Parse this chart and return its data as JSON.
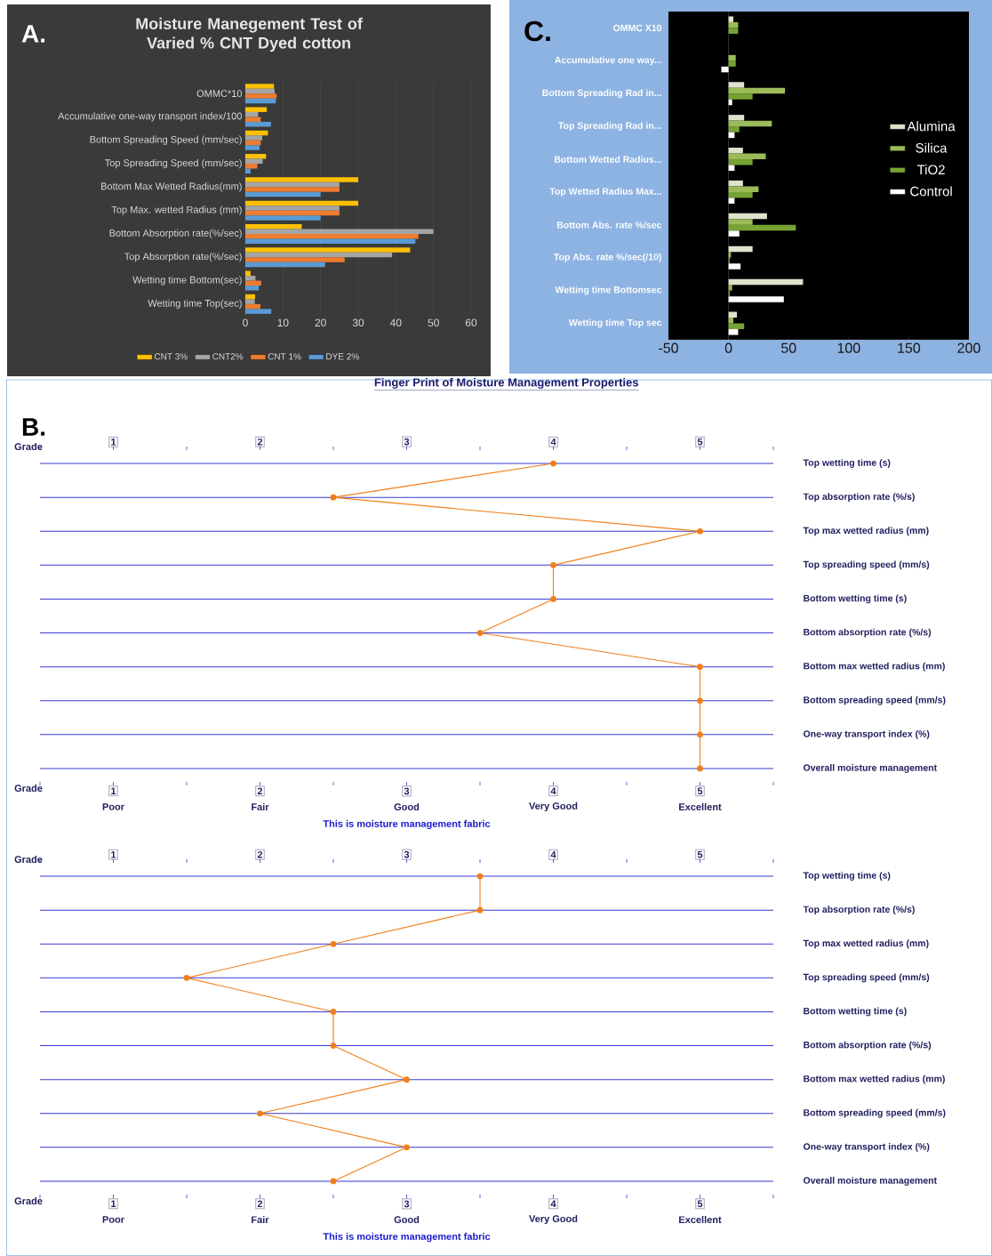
{
  "chart_data": [
    {
      "type": "bar",
      "orientation": "horizontal",
      "title": "Moisture Manegement Test of Varied % CNT Dyed cotton",
      "categories": [
        "OMMC*10",
        "Accumulative one-way transport index/100",
        "Bottom Spreading Speed (mm/sec)",
        "Top Spreading Speed (mm/sec)",
        "Bottom Max Wetted Radius(mm)",
        "Top Max. wetted Radius (mm)",
        "Bottom Absorption rate(%/sec)",
        "Top Absorption rate(%/sec)",
        "Wetting time Bottom(sec)",
        "Wetting time Top(sec)"
      ],
      "series": [
        {
          "name": "CNT 3%",
          "color": "#ffc000",
          "values": [
            7.6,
            5.7,
            6.0,
            5.5,
            30,
            30,
            15,
            43.8,
            1.4,
            2.6
          ]
        },
        {
          "name": "CNT2%",
          "color": "#a5a5a5",
          "values": [
            7.8,
            3.4,
            4.5,
            4.6,
            25,
            25,
            50,
            39,
            2.7,
            2.5
          ]
        },
        {
          "name": "CNT 1%",
          "color": "#ed7d31",
          "values": [
            8.3,
            4.1,
            4.1,
            3.2,
            25,
            25,
            46,
            26.4,
            4.2,
            4.0
          ]
        },
        {
          "name": "DYE 2%",
          "color": "#5b9bd5",
          "values": [
            8.1,
            6.8,
            3.8,
            1.4,
            20,
            20,
            45.2,
            21.2,
            3.6,
            6.9
          ]
        }
      ],
      "xlim": [
        0,
        60
      ],
      "xticks": [
        0,
        10,
        20,
        30,
        40,
        50,
        60
      ],
      "grid": "x",
      "legend": "bottom",
      "annotations": [
        "A."
      ]
    },
    {
      "type": "bar",
      "orientation": "horizontal",
      "categories": [
        "OMMC X10",
        "Accumulative one way...",
        "Bottom Spreading Rad in...",
        "Top Spreading Rad in...",
        "Bottom Wetted Radius...",
        "Top Wetted Radius Max...",
        "Bottom Abs. rate %/sec",
        "Top Abs. rate %/sec(/10)",
        "Wetting time Bottomsec",
        "Wetting time Top sec"
      ],
      "series": [
        {
          "name": "Alumina",
          "color": "#dde2cc",
          "values": [
            4,
            0,
            13,
            13,
            12,
            12,
            32,
            20,
            62,
            7
          ]
        },
        {
          "name": "Silica",
          "color": "#9bbb59",
          "values": [
            8,
            6,
            47,
            36,
            31,
            25,
            20,
            2,
            3,
            4
          ]
        },
        {
          "name": "TiO2",
          "color": "#76a333",
          "values": [
            8,
            6,
            20,
            9,
            20,
            20,
            56,
            1,
            1,
            13
          ]
        },
        {
          "name": "Control",
          "color": "#ffffff",
          "values": [
            0,
            -6,
            3,
            5,
            5,
            5,
            9,
            10,
            46,
            8
          ]
        }
      ],
      "xlim": [
        -50,
        200
      ],
      "xticks": [
        -50,
        0,
        50,
        100,
        150,
        200
      ],
      "legend": "right",
      "annotations": [
        "C."
      ]
    },
    {
      "type": "line",
      "orientation": "horizontal",
      "title": "Finger Print of Moisture Management Properties",
      "categories": [
        "Top wetting time (s)",
        "Top absorption rate (%/s)",
        "Top max wetted radius (mm)",
        "Top spreading speed (mm/s)",
        "Bottom wetting time (s)",
        "Bottom absorption rate (%/s)",
        "Bottom max wetted radius (mm)",
        "Bottom spreading speed (mm/s)",
        "One-way transport index (%)",
        "Overall moisture management"
      ],
      "series": [
        {
          "color": "#f07f1a",
          "values": [
            4,
            2.5,
            5,
            4,
            4,
            3.5,
            5,
            5,
            5,
            5
          ]
        }
      ],
      "xlim": [
        0.5,
        5.5
      ],
      "xticks": [
        {
          "value": 0.5,
          "label": null
        },
        {
          "value": 1,
          "label": "1"
        },
        {
          "value": 1.5,
          "label": null
        },
        {
          "value": 2,
          "label": "2"
        },
        {
          "value": 2.5,
          "label": null
        },
        {
          "value": 3,
          "label": "3"
        },
        {
          "value": 3.5,
          "label": null
        },
        {
          "value": 4,
          "label": "4"
        },
        {
          "value": 4.5,
          "label": null
        },
        {
          "value": 5,
          "label": "5"
        },
        {
          "value": 5.5,
          "label": null
        }
      ],
      "x2lim": [
        0.5,
        5.5
      ],
      "x2ticks": [
        {
          "value": 0.5,
          "label": null
        },
        {
          "value": 1,
          "label": "1"
        },
        {
          "value": 1.5,
          "label": null
        },
        {
          "value": 2,
          "label": "2"
        },
        {
          "value": 2.5,
          "label": null
        },
        {
          "value": 3,
          "label": "3"
        },
        {
          "value": 3.5,
          "label": null
        },
        {
          "value": 4,
          "label": "4"
        },
        {
          "value": 4.5,
          "label": null
        },
        {
          "value": 5,
          "label": "5"
        },
        {
          "value": 5.5,
          "label": null
        }
      ],
      "xlabel": "Grade",
      "x2label": "Grade",
      "grid": "y",
      "marker": "circle",
      "annotations": [
        "Poor",
        "Fair",
        "Good",
        "Very Good",
        "Excellent",
        "This is moisture management fabric",
        "B."
      ]
    },
    {
      "type": "line",
      "orientation": "horizontal",
      "categories": [
        "Top wetting time (s)",
        "Top absorption rate (%/s)",
        "Top max wetted radius (mm)",
        "Top spreading speed (mm/s)",
        "Bottom wetting time (s)",
        "Bottom absorption rate (%/s)",
        "Bottom max wetted radius (mm)",
        "Bottom spreading speed (mm/s)",
        "One-way transport index (%)",
        "Overall moisture management"
      ],
      "series": [
        {
          "color": "#f07f1a",
          "values": [
            3.5,
            3.5,
            2.5,
            1.5,
            2.5,
            2.5,
            3,
            2,
            3,
            2.5
          ]
        }
      ],
      "xlim": [
        0.5,
        5.5
      ],
      "xticks": [
        {
          "value": 0.5,
          "label": null
        },
        {
          "value": 1,
          "label": "1"
        },
        {
          "value": 1.5,
          "label": null
        },
        {
          "value": 2,
          "label": "2"
        },
        {
          "value": 2.5,
          "label": null
        },
        {
          "value": 3,
          "label": "3"
        },
        {
          "value": 3.5,
          "label": null
        },
        {
          "value": 4,
          "label": "4"
        },
        {
          "value": 4.5,
          "label": null
        },
        {
          "value": 5,
          "label": "5"
        },
        {
          "value": 5.5,
          "label": null
        }
      ],
      "x2lim": [
        0.5,
        5.5
      ],
      "x2ticks": [
        {
          "value": 0.5,
          "label": null
        },
        {
          "value": 1,
          "label": "1"
        },
        {
          "value": 1.5,
          "label": null
        },
        {
          "value": 2,
          "label": "2"
        },
        {
          "value": 2.5,
          "label": null
        },
        {
          "value": 3,
          "label": "3"
        },
        {
          "value": 3.5,
          "label": null
        },
        {
          "value": 4,
          "label": "4"
        },
        {
          "value": 4.5,
          "label": null
        },
        {
          "value": 5,
          "label": "5"
        },
        {
          "value": 5.5,
          "label": null
        }
      ],
      "xlabel": "Grade",
      "x2label": "Grade",
      "grid": "y",
      "marker": "circle",
      "annotations": [
        "Poor",
        "Fair",
        "Good",
        "Very Good",
        "Excellent",
        "This is moisture management fabric"
      ]
    }
  ]
}
